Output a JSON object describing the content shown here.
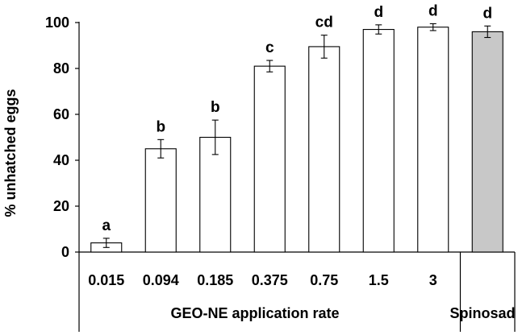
{
  "chart_data": {
    "type": "bar",
    "ylabel": "% unhatched eggs",
    "ylim": [
      0,
      100
    ],
    "yticks": [
      0,
      20,
      40,
      60,
      80,
      100
    ],
    "grid": false,
    "categories": [
      "0.015",
      "0.094",
      "0.185",
      "0.375",
      "0.75",
      "1.5",
      "3",
      ""
    ],
    "values": [
      4,
      45,
      50,
      81,
      89.5,
      97,
      98,
      96
    ],
    "errors": [
      2,
      4,
      7.5,
      2.5,
      5,
      2,
      1.5,
      2.5
    ],
    "significance_letters": [
      "a",
      "b",
      "b",
      "c",
      "cd",
      "d",
      "d",
      "d"
    ],
    "bar_colors": [
      "#ffffff",
      "#ffffff",
      "#ffffff",
      "#ffffff",
      "#ffffff",
      "#ffffff",
      "#ffffff",
      "#c8c8c8"
    ],
    "group_labels": [
      "GEO-NE application rate",
      "Spinosad"
    ]
  }
}
